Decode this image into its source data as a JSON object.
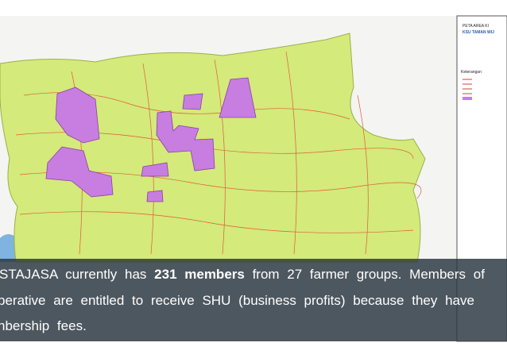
{
  "map": {
    "legend_title": "PETA AREA KI",
    "legend_subtitle": "KSU TAMAN WIJ",
    "legend_heading": "Keterangan"
  },
  "caption": {
    "lines": [
      [
        "STAJASA currently has ",
        "231 members",
        " from 27 farmer groups. Members of"
      ],
      [
        "perative are entitled to receive SHU (business profits) because they have"
      ],
      [
        "nbership fees."
      ]
    ]
  }
}
